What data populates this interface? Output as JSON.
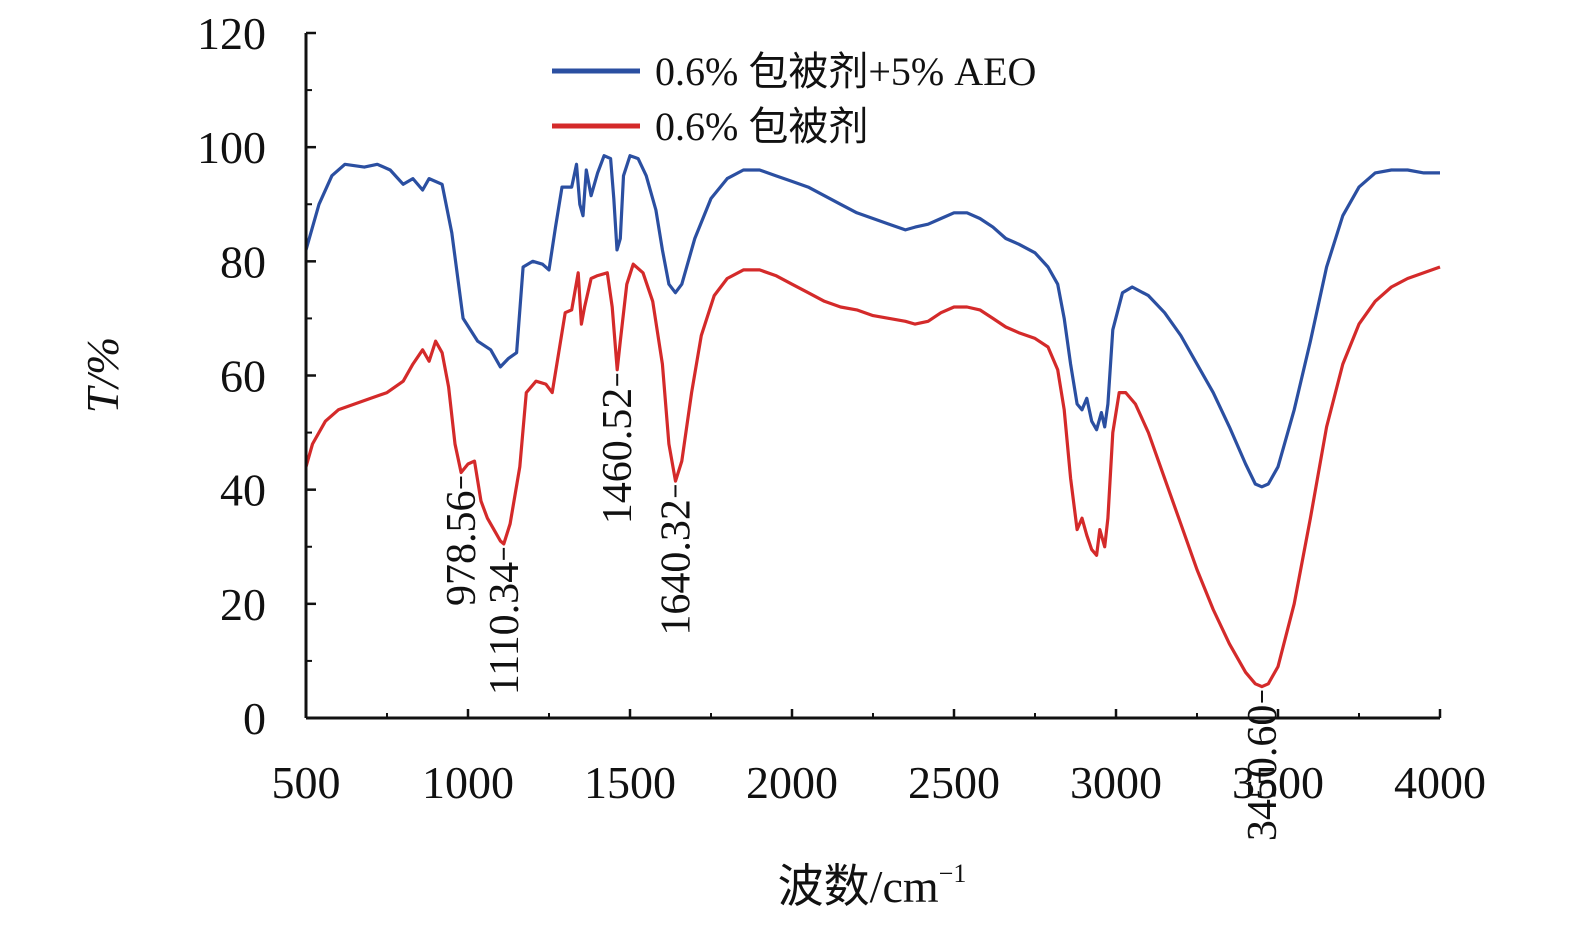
{
  "chart_data": {
    "type": "line",
    "title": "",
    "xlabel": "波数/cm",
    "xlabel_superscript": "−1",
    "ylabel": "T/%",
    "xlim": [
      500,
      4000
    ],
    "ylim": [
      0,
      120
    ],
    "x_ticks": [
      500,
      1000,
      1500,
      2000,
      2500,
      3000,
      3500,
      4000
    ],
    "y_ticks": [
      0,
      20,
      40,
      60,
      80,
      100,
      120
    ],
    "grid": false,
    "legend_position": "top-center",
    "series": [
      {
        "name": "0.6% 包被剂+5% AEO",
        "color": "#2b4fa1",
        "points": [
          [
            500,
            82
          ],
          [
            540,
            90
          ],
          [
            580,
            95
          ],
          [
            620,
            97
          ],
          [
            680,
            96.5
          ],
          [
            720,
            97
          ],
          [
            760,
            96
          ],
          [
            800,
            93.5
          ],
          [
            830,
            94.5
          ],
          [
            860,
            92.5
          ],
          [
            880,
            94.5
          ],
          [
            920,
            93.5
          ],
          [
            950,
            85
          ],
          [
            985,
            70
          ],
          [
            1030,
            66
          ],
          [
            1070,
            64.5
          ],
          [
            1100,
            61.5
          ],
          [
            1125,
            63
          ],
          [
            1150,
            64
          ],
          [
            1170,
            79
          ],
          [
            1200,
            80
          ],
          [
            1230,
            79.5
          ],
          [
            1250,
            78.5
          ],
          [
            1270,
            86
          ],
          [
            1290,
            93
          ],
          [
            1320,
            93
          ],
          [
            1335,
            97
          ],
          [
            1345,
            90
          ],
          [
            1355,
            88
          ],
          [
            1365,
            96
          ],
          [
            1380,
            91.5
          ],
          [
            1400,
            95.5
          ],
          [
            1420,
            98.5
          ],
          [
            1440,
            98
          ],
          [
            1450,
            91
          ],
          [
            1460,
            82
          ],
          [
            1470,
            84
          ],
          [
            1480,
            95
          ],
          [
            1500,
            98.5
          ],
          [
            1525,
            98
          ],
          [
            1550,
            95
          ],
          [
            1580,
            89
          ],
          [
            1600,
            82
          ],
          [
            1620,
            76
          ],
          [
            1640,
            74.5
          ],
          [
            1660,
            76
          ],
          [
            1700,
            84
          ],
          [
            1750,
            91
          ],
          [
            1800,
            94.5
          ],
          [
            1850,
            96
          ],
          [
            1900,
            96
          ],
          [
            1950,
            95
          ],
          [
            2000,
            94
          ],
          [
            2050,
            93
          ],
          [
            2100,
            91.5
          ],
          [
            2150,
            90
          ],
          [
            2200,
            88.5
          ],
          [
            2250,
            87.5
          ],
          [
            2300,
            86.5
          ],
          [
            2350,
            85.5
          ],
          [
            2380,
            86
          ],
          [
            2420,
            86.5
          ],
          [
            2460,
            87.5
          ],
          [
            2500,
            88.5
          ],
          [
            2540,
            88.5
          ],
          [
            2580,
            87.5
          ],
          [
            2620,
            86
          ],
          [
            2660,
            84
          ],
          [
            2700,
            83
          ],
          [
            2750,
            81.5
          ],
          [
            2790,
            79
          ],
          [
            2820,
            76
          ],
          [
            2840,
            70
          ],
          [
            2860,
            62
          ],
          [
            2880,
            55
          ],
          [
            2895,
            54
          ],
          [
            2910,
            56
          ],
          [
            2925,
            52
          ],
          [
            2940,
            50.5
          ],
          [
            2955,
            53.5
          ],
          [
            2965,
            51
          ],
          [
            2975,
            55
          ],
          [
            2990,
            68
          ],
          [
            3020,
            74.5
          ],
          [
            3050,
            75.5
          ],
          [
            3100,
            74
          ],
          [
            3150,
            71
          ],
          [
            3200,
            67
          ],
          [
            3250,
            62
          ],
          [
            3300,
            57
          ],
          [
            3350,
            51
          ],
          [
            3400,
            44.5
          ],
          [
            3430,
            41
          ],
          [
            3450,
            40.5
          ],
          [
            3470,
            41
          ],
          [
            3500,
            44
          ],
          [
            3550,
            54
          ],
          [
            3600,
            66
          ],
          [
            3650,
            79
          ],
          [
            3700,
            88
          ],
          [
            3750,
            93
          ],
          [
            3800,
            95.5
          ],
          [
            3850,
            96
          ],
          [
            3900,
            96
          ],
          [
            3950,
            95.5
          ],
          [
            4000,
            95.5
          ]
        ]
      },
      {
        "name": "0.6% 包被剂",
        "color": "#d42a2a",
        "points": [
          [
            500,
            44
          ],
          [
            520,
            48
          ],
          [
            560,
            52
          ],
          [
            600,
            54
          ],
          [
            650,
            55
          ],
          [
            700,
            56
          ],
          [
            750,
            57
          ],
          [
            800,
            59
          ],
          [
            830,
            62
          ],
          [
            860,
            64.5
          ],
          [
            880,
            62.5
          ],
          [
            900,
            66
          ],
          [
            920,
            64
          ],
          [
            940,
            58
          ],
          [
            960,
            48
          ],
          [
            978.56,
            43
          ],
          [
            1000,
            44.5
          ],
          [
            1020,
            45
          ],
          [
            1040,
            38
          ],
          [
            1060,
            35
          ],
          [
            1080,
            33
          ],
          [
            1100,
            31
          ],
          [
            1110.34,
            30.5
          ],
          [
            1130,
            34
          ],
          [
            1160,
            44
          ],
          [
            1180,
            57
          ],
          [
            1210,
            59
          ],
          [
            1240,
            58.5
          ],
          [
            1260,
            57
          ],
          [
            1280,
            64
          ],
          [
            1300,
            71
          ],
          [
            1320,
            71.5
          ],
          [
            1340,
            78
          ],
          [
            1350,
            69
          ],
          [
            1360,
            72
          ],
          [
            1380,
            77
          ],
          [
            1400,
            77.5
          ],
          [
            1430,
            78
          ],
          [
            1445,
            72
          ],
          [
            1460.52,
            61
          ],
          [
            1470,
            66
          ],
          [
            1490,
            76
          ],
          [
            1510,
            79.5
          ],
          [
            1540,
            78
          ],
          [
            1570,
            73
          ],
          [
            1600,
            62
          ],
          [
            1620,
            48
          ],
          [
            1640.32,
            41.5
          ],
          [
            1660,
            45
          ],
          [
            1690,
            57
          ],
          [
            1720,
            67
          ],
          [
            1760,
            74
          ],
          [
            1800,
            77
          ],
          [
            1850,
            78.5
          ],
          [
            1900,
            78.5
          ],
          [
            1950,
            77.5
          ],
          [
            2000,
            76
          ],
          [
            2050,
            74.5
          ],
          [
            2100,
            73
          ],
          [
            2150,
            72
          ],
          [
            2200,
            71.5
          ],
          [
            2250,
            70.5
          ],
          [
            2300,
            70
          ],
          [
            2350,
            69.5
          ],
          [
            2380,
            69
          ],
          [
            2420,
            69.5
          ],
          [
            2460,
            71
          ],
          [
            2500,
            72
          ],
          [
            2540,
            72
          ],
          [
            2580,
            71.5
          ],
          [
            2620,
            70
          ],
          [
            2660,
            68.5
          ],
          [
            2700,
            67.5
          ],
          [
            2750,
            66.5
          ],
          [
            2790,
            65
          ],
          [
            2820,
            61
          ],
          [
            2840,
            54
          ],
          [
            2860,
            42
          ],
          [
            2880,
            33
          ],
          [
            2895,
            35
          ],
          [
            2910,
            32
          ],
          [
            2925,
            29.5
          ],
          [
            2940,
            28.5
          ],
          [
            2950,
            33
          ],
          [
            2965,
            30
          ],
          [
            2975,
            35
          ],
          [
            2990,
            50
          ],
          [
            3010,
            57
          ],
          [
            3030,
            57
          ],
          [
            3060,
            55
          ],
          [
            3100,
            50
          ],
          [
            3150,
            42
          ],
          [
            3200,
            34
          ],
          [
            3250,
            26
          ],
          [
            3300,
            19
          ],
          [
            3350,
            13
          ],
          [
            3400,
            8
          ],
          [
            3430,
            6
          ],
          [
            3450.6,
            5.5
          ],
          [
            3470,
            6
          ],
          [
            3500,
            9
          ],
          [
            3550,
            20
          ],
          [
            3600,
            35
          ],
          [
            3650,
            51
          ],
          [
            3700,
            62
          ],
          [
            3750,
            69
          ],
          [
            3800,
            73
          ],
          [
            3850,
            75.5
          ],
          [
            3900,
            77
          ],
          [
            3950,
            78
          ],
          [
            4000,
            79
          ]
        ]
      }
    ],
    "annotations": [
      {
        "label": "978.56",
        "x": 978.56,
        "y": 43
      },
      {
        "label": "1110.34",
        "x": 1110.34,
        "y": 30.5
      },
      {
        "label": "1460.52",
        "x": 1460.52,
        "y": 61
      },
      {
        "label": "1640.32",
        "x": 1640.32,
        "y": 41.5
      },
      {
        "label": "3450.60",
        "x": 3450.6,
        "y": 5.5
      }
    ]
  }
}
